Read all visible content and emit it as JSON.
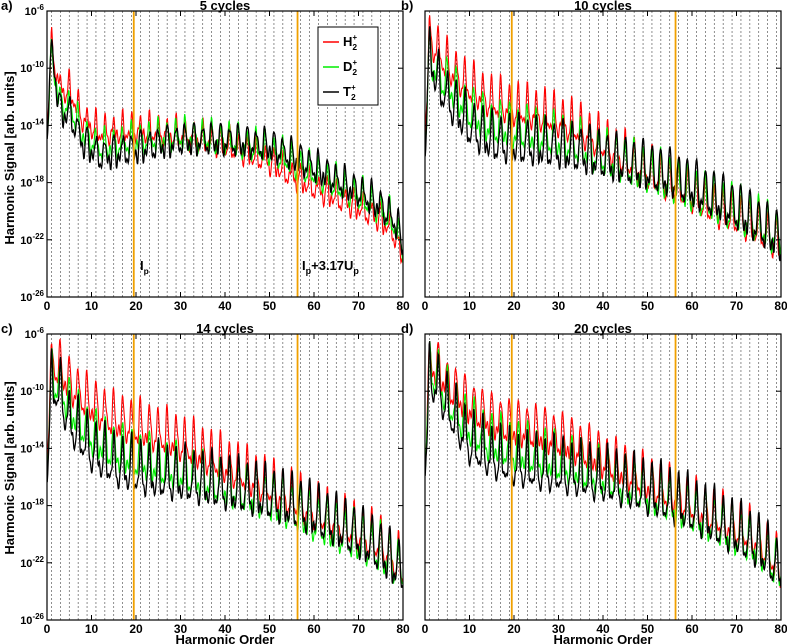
{
  "figure": {
    "ylabel": "Harmonic Signal [arb. units]",
    "xlabel": "Harmonic Order",
    "annotation_ip": "I",
    "annotation_ip_sub": "p",
    "annotation_cutoff_a": "I",
    "annotation_cutoff_a_sub": "p",
    "annotation_cutoff_b": "+3.17U",
    "annotation_cutoff_b_sub": "p"
  },
  "chart_data": [
    {
      "type": "line",
      "panel_label": "a)",
      "title": "5 cycles",
      "xlabel": "",
      "ylabel": "Harmonic Signal [arb. units]",
      "xlim": [
        0,
        80
      ],
      "ylim_exponent": [
        -26,
        -6
      ],
      "x_ticks": [
        "0",
        "10",
        "20",
        "30",
        "40",
        "50",
        "60",
        "70",
        "80"
      ],
      "y_ticks": [
        "10-26",
        "10-22",
        "10-18",
        "10-14",
        "10-10",
        "10-6"
      ],
      "vertical_markers": [
        {
          "label": "Ip",
          "x": 19.5
        },
        {
          "label": "Ip+3.17Up",
          "x": 56.3
        }
      ],
      "legend": [
        {
          "name": "H2+",
          "base": "H",
          "sub": "2",
          "sup": "+",
          "color": "#ff0000"
        },
        {
          "name": "D2+",
          "base": "D",
          "sub": "2",
          "sup": "+",
          "color": "#00ee00"
        },
        {
          "name": "T2+",
          "base": "T",
          "sub": "2",
          "sup": "+",
          "color": "#000000"
        }
      ],
      "series": [
        {
          "name": "H2+",
          "color": "#ff0000",
          "envelope_x": [
            0,
            1,
            3,
            5,
            8,
            12,
            20,
            30,
            40,
            50,
            55,
            60,
            65,
            70,
            75,
            78,
            80
          ],
          "envelope_log10": [
            -14,
            -8,
            -11,
            -11,
            -13,
            -14,
            -13.8,
            -14.2,
            -14.8,
            -16,
            -17,
            -17.8,
            -18.5,
            -19.2,
            -20,
            -21,
            -23
          ],
          "ripple": 1.0
        },
        {
          "name": "D2+",
          "color": "#00ee00",
          "envelope_x": [
            0,
            1,
            3,
            5,
            8,
            12,
            20,
            30,
            40,
            50,
            55,
            60,
            65,
            70,
            75,
            78,
            80
          ],
          "envelope_log10": [
            -14,
            -8.5,
            -12,
            -12,
            -14,
            -15,
            -14.5,
            -14.2,
            -14.5,
            -15.2,
            -16,
            -16.8,
            -17.6,
            -18.4,
            -19.3,
            -20.3,
            -22
          ],
          "ripple": 1.1
        },
        {
          "name": "T2+",
          "color": "#000000",
          "envelope_x": [
            0,
            1,
            3,
            5,
            8,
            12,
            20,
            30,
            40,
            50,
            55,
            60,
            65,
            70,
            75,
            78,
            80
          ],
          "envelope_log10": [
            -14,
            -8,
            -12.5,
            -12.5,
            -14.5,
            -15.5,
            -15,
            -14.4,
            -14.4,
            -14.8,
            -15.5,
            -16.3,
            -17.2,
            -18,
            -19,
            -20,
            -21.5
          ],
          "ripple": 1.2
        }
      ]
    },
    {
      "type": "line",
      "panel_label": "b)",
      "title": "10 cycles",
      "xlabel": "",
      "ylabel": "",
      "xlim": [
        0,
        80
      ],
      "ylim_exponent": [
        -26,
        -6
      ],
      "x_ticks": [
        "0",
        "10",
        "20",
        "30",
        "40",
        "50",
        "60",
        "70",
        "80"
      ],
      "y_ticks": [
        "10-26",
        "10-22",
        "10-18",
        "10-14",
        "10-10",
        "10-6"
      ],
      "vertical_markers": [
        {
          "label": "Ip",
          "x": 19.5
        },
        {
          "label": "Ip+3.17Up",
          "x": 56.3
        }
      ],
      "series": [
        {
          "name": "H2+",
          "color": "#ff0000",
          "envelope_x": [
            0,
            1,
            3,
            5,
            10,
            15,
            20,
            25,
            30,
            35,
            40,
            45,
            50,
            55,
            60,
            65,
            70,
            75,
            80
          ],
          "envelope_log10": [
            -14,
            -7,
            -8,
            -9,
            -10.5,
            -11.5,
            -12,
            -12.3,
            -12.8,
            -13.5,
            -14.5,
            -15.5,
            -16.5,
            -17.2,
            -18,
            -19,
            -19.6,
            -20.4,
            -21.5
          ],
          "ripple": 1.6
        },
        {
          "name": "D2+",
          "color": "#00ee00",
          "envelope_x": [
            0,
            1,
            3,
            5,
            10,
            15,
            20,
            25,
            30,
            35,
            40,
            45,
            50,
            55,
            60,
            65,
            70,
            75,
            80
          ],
          "envelope_log10": [
            -14,
            -8,
            -9.5,
            -10,
            -12,
            -13,
            -13.3,
            -13.6,
            -14,
            -14.5,
            -15.2,
            -15.8,
            -16.4,
            -17,
            -17.8,
            -18.5,
            -19.2,
            -20,
            -21
          ],
          "ripple": 1.8
        },
        {
          "name": "T2+",
          "color": "#000000",
          "envelope_x": [
            0,
            1,
            3,
            5,
            10,
            15,
            20,
            25,
            30,
            35,
            40,
            45,
            50,
            55,
            60,
            65,
            70,
            75,
            80
          ],
          "envelope_log10": [
            -14,
            -8,
            -10,
            -11,
            -13,
            -14,
            -14.2,
            -14.3,
            -14.5,
            -14.8,
            -15.2,
            -15.6,
            -16,
            -16.5,
            -17.2,
            -18,
            -18.8,
            -19.8,
            -21
          ],
          "ripple": 2.0
        }
      ]
    },
    {
      "type": "line",
      "panel_label": "c)",
      "title": "14 cycles",
      "xlabel": "Harmonic Order",
      "ylabel": "Harmonic Signal [arb. units]",
      "xlim": [
        0,
        80
      ],
      "ylim_exponent": [
        -26,
        -6
      ],
      "x_ticks": [
        "0",
        "10",
        "20",
        "30",
        "40",
        "50",
        "60",
        "70",
        "80"
      ],
      "y_ticks": [
        "10-26",
        "10-22",
        "10-18",
        "10-14",
        "10-10",
        "10-6"
      ],
      "vertical_markers": [
        {
          "label": "Ip",
          "x": 19.5
        },
        {
          "label": "Ip+3.17Up",
          "x": 56.3
        }
      ],
      "series": [
        {
          "name": "H2+",
          "color": "#ff0000",
          "envelope_x": [
            0,
            1,
            3,
            5,
            10,
            15,
            20,
            25,
            30,
            35,
            40,
            45,
            50,
            55,
            60,
            65,
            70,
            75,
            80
          ],
          "envelope_log10": [
            -14,
            -7,
            -7.5,
            -8.5,
            -10,
            -11,
            -11.5,
            -12,
            -12.6,
            -13.4,
            -14.2,
            -15,
            -15.8,
            -16.6,
            -17.5,
            -18.2,
            -19,
            -19.8,
            -21.5
          ],
          "ripple": 1.8
        },
        {
          "name": "D2+",
          "color": "#00ee00",
          "envelope_x": [
            0,
            1,
            3,
            5,
            10,
            15,
            20,
            25,
            30,
            35,
            40,
            45,
            50,
            55,
            60,
            65,
            70,
            75,
            80
          ],
          "envelope_log10": [
            -14,
            -8,
            -8.5,
            -10,
            -12,
            -13,
            -13.5,
            -14,
            -14.5,
            -15,
            -15.5,
            -16,
            -16.6,
            -17.2,
            -18,
            -18.7,
            -19.4,
            -20.2,
            -21.5
          ],
          "ripple": 2.0
        },
        {
          "name": "T2+",
          "color": "#000000",
          "envelope_x": [
            0,
            1,
            3,
            5,
            10,
            15,
            20,
            25,
            30,
            35,
            40,
            45,
            50,
            55,
            60,
            65,
            70,
            75,
            80
          ],
          "envelope_log10": [
            -14,
            -8.5,
            -9,
            -11,
            -13,
            -14,
            -14.5,
            -14.8,
            -15,
            -15.3,
            -15.6,
            -15.9,
            -16.3,
            -16.8,
            -17.4,
            -18.2,
            -19,
            -20,
            -21.5
          ],
          "ripple": 2.2
        }
      ]
    },
    {
      "type": "line",
      "panel_label": "d)",
      "title": "20 cycles",
      "xlabel": "Harmonic Order",
      "ylabel": "",
      "xlim": [
        0,
        80
      ],
      "ylim_exponent": [
        -26,
        -6
      ],
      "x_ticks": [
        "0",
        "10",
        "20",
        "30",
        "40",
        "50",
        "60",
        "70",
        "80"
      ],
      "y_ticks": [
        "10-26",
        "10-22",
        "10-18",
        "10-14",
        "10-10",
        "10-6"
      ],
      "vertical_markers": [
        {
          "label": "Ip",
          "x": 19.5
        },
        {
          "label": "Ip+3.17Up",
          "x": 56.3
        }
      ],
      "series": [
        {
          "name": "H2+",
          "color": "#ff0000",
          "envelope_x": [
            0,
            1,
            3,
            5,
            10,
            15,
            20,
            25,
            30,
            35,
            40,
            45,
            50,
            55,
            60,
            65,
            70,
            75,
            80
          ],
          "envelope_log10": [
            -14,
            -7,
            -7.5,
            -8.5,
            -10,
            -11,
            -11.5,
            -11.8,
            -12.3,
            -13,
            -13.8,
            -14.6,
            -15.4,
            -16.2,
            -17,
            -17.8,
            -18.6,
            -19.5,
            -21.5
          ],
          "ripple": 1.8
        },
        {
          "name": "D2+",
          "color": "#00ee00",
          "envelope_x": [
            0,
            1,
            3,
            5,
            10,
            15,
            20,
            25,
            30,
            35,
            40,
            45,
            50,
            55,
            60,
            65,
            70,
            75,
            80
          ],
          "envelope_log10": [
            -14,
            -7.5,
            -8,
            -9.5,
            -11.5,
            -12.5,
            -13,
            -13.4,
            -13.8,
            -14.3,
            -14.8,
            -15.4,
            -16,
            -16.7,
            -17.4,
            -18.2,
            -19,
            -19.8,
            -21.5
          ],
          "ripple": 2.0
        },
        {
          "name": "T2+",
          "color": "#000000",
          "envelope_x": [
            0,
            1,
            3,
            5,
            10,
            15,
            20,
            25,
            30,
            35,
            40,
            45,
            50,
            55,
            60,
            65,
            70,
            75,
            80
          ],
          "envelope_log10": [
            -14,
            -8,
            -8.5,
            -10,
            -12.5,
            -13.5,
            -14,
            -14.3,
            -14.5,
            -14.8,
            -15.1,
            -15.5,
            -16,
            -16.5,
            -17.2,
            -18,
            -18.8,
            -19.7,
            -21.5
          ],
          "ripple": 2.2
        }
      ]
    }
  ]
}
